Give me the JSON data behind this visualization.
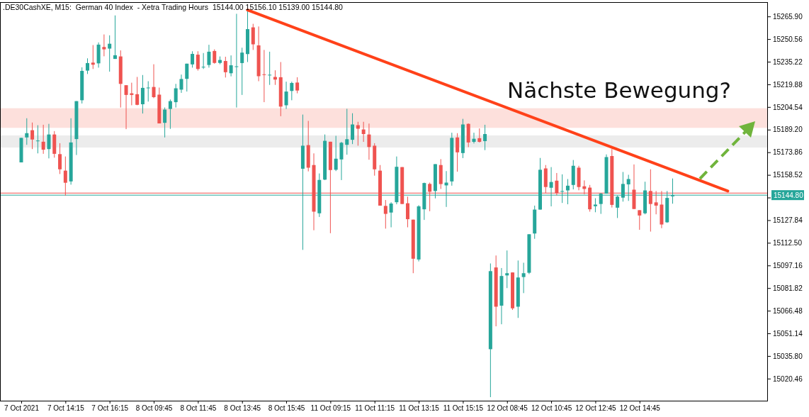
{
  "chart_data": {
    "type": "candlestick",
    "title": ".DE30CashXE, M15:  German 40 Index  - Xetra Trading Hours  15144.00 15156.10 15139.00 15144.80",
    "annotations": [
      "Nächste Bewegung?"
    ],
    "categories": [
      "7 Oct 2021",
      null,
      null,
      null,
      null,
      null,
      null,
      null,
      "7 Oct 14:15",
      null,
      null,
      null,
      null,
      null,
      null,
      null,
      "7 Oct 16:15",
      null,
      null,
      null,
      null,
      null,
      null,
      null,
      "8 Oct 09:45",
      null,
      null,
      null,
      null,
      null,
      null,
      null,
      "8 Oct 11:45",
      null,
      null,
      null,
      null,
      null,
      null,
      null,
      "8 Oct 13:45",
      null,
      null,
      null,
      null,
      null,
      null,
      null,
      "8 Oct 15:45",
      null,
      null,
      null,
      null,
      null,
      null,
      null,
      "11 Oct 09:15",
      null,
      null,
      null,
      null,
      null,
      null,
      null,
      "11 Oct 11:15",
      null,
      null,
      null,
      null,
      null,
      null,
      null,
      "11 Oct 13:15",
      null,
      null,
      null,
      null,
      null,
      null,
      null,
      "11 Oct 15:15",
      null,
      null,
      null,
      null,
      null,
      null,
      null,
      "12 Oct 08:45",
      null,
      null,
      null,
      null,
      null,
      null,
      null,
      "12 Oct 10:45",
      null,
      null,
      null,
      null,
      null,
      null,
      null,
      "12 Oct 12:45",
      null,
      null,
      null,
      null,
      null,
      null,
      null,
      "12 Oct 14:45",
      null,
      null,
      null,
      null,
      null,
      null,
      null,
      null,
      null,
      null,
      null,
      null,
      null,
      null,
      null,
      null,
      null,
      null,
      null,
      null,
      null,
      null,
      null
    ],
    "ohlc": [
      [
        15167.0,
        15183.6,
        15167.0,
        15183.6
      ],
      [
        15183.9,
        15196.9,
        15178.9,
        15186.8
      ],
      [
        15188.8,
        15194.0,
        15176.0,
        15182.5
      ],
      [
        15181.6,
        15192.2,
        15173.1,
        15181.8
      ],
      [
        15181.0,
        15192.5,
        15172.8,
        15175.6
      ],
      [
        15176.0,
        15193.1,
        15169.7,
        15185.9
      ],
      [
        15185.9,
        15188.2,
        15170.2,
        15172.8
      ],
      [
        15172.6,
        15180.0,
        15159.1,
        15162.3
      ],
      [
        15161.4,
        15171.0,
        15144.5,
        15153.2
      ],
      [
        15154.1,
        15196.9,
        15151.9,
        15180.5
      ],
      [
        15182.8,
        15208.5,
        15172.0,
        15208.5
      ],
      [
        15209.1,
        15231.4,
        15206.9,
        15229.0
      ],
      [
        15229.2,
        15237.5,
        15226.9,
        15234.3
      ],
      [
        15234.6,
        15246.5,
        15230.3,
        15233.2
      ],
      [
        15234.1,
        15248.3,
        15231.2,
        15246.8
      ],
      [
        15245.2,
        15253.7,
        15238.9,
        15243.6
      ],
      [
        15244.1,
        15253.1,
        15228.5,
        15247.4
      ],
      [
        15237.1,
        15266.6,
        15237.1,
        15239.6
      ],
      [
        15238.8,
        15242.9,
        15204.2,
        15220.2
      ],
      [
        15219.3,
        15219.3,
        15189.5,
        15212.7
      ],
      [
        15213.8,
        15221.0,
        15205.7,
        15212.7
      ],
      [
        15213.2,
        15224.9,
        15205.7,
        15206.0
      ],
      [
        15206.4,
        15226.2,
        15200.1,
        15217.5
      ],
      [
        15217.5,
        15222.0,
        15208.2,
        15217.7
      ],
      [
        15218.1,
        15233.5,
        15210.5,
        15211.2
      ],
      [
        15212.9,
        15217.7,
        15193.4,
        15193.4
      ],
      [
        15193.8,
        15204.2,
        15183.9,
        15202.8
      ],
      [
        15203.2,
        15209.6,
        15189.7,
        15208.5
      ],
      [
        15207.8,
        15220.2,
        15204.2,
        15217.2
      ],
      [
        15216.3,
        15226.5,
        15214.1,
        15223.5
      ],
      [
        15223.6,
        15233.9,
        15215.0,
        15233.9
      ],
      [
        15233.4,
        15242.3,
        15231.2,
        15240.5
      ],
      [
        15240.0,
        15242.3,
        15229.2,
        15230.3
      ],
      [
        15231.6,
        15241.1,
        15230.3,
        15231.8
      ],
      [
        15233.0,
        15246.7,
        15231.2,
        15242.0
      ],
      [
        15242.5,
        15243.6,
        15233.9,
        15234.4
      ],
      [
        15234.4,
        15238.8,
        15233.5,
        15236.4
      ],
      [
        15235.7,
        15238.6,
        15224.5,
        15228.1
      ],
      [
        15227.4,
        15239.5,
        15225.3,
        15232.8
      ],
      [
        15231.9,
        15267.7,
        15204.2,
        15232.1
      ],
      [
        15234.3,
        15244.7,
        15212.7,
        15241.4
      ],
      [
        15240.4,
        15270.2,
        15235.0,
        15257.3
      ],
      [
        15258.5,
        15260.9,
        15243.2,
        15247.0
      ],
      [
        15246.3,
        15259.1,
        15222.0,
        15225.4
      ],
      [
        15226.7,
        15243.2,
        15207.8,
        15226.5
      ],
      [
        15226.2,
        15242.0,
        15219.5,
        15226.4
      ],
      [
        15224.9,
        15229.4,
        15219.5,
        15223.1
      ],
      [
        15224.7,
        15235.0,
        15198.3,
        15204.8
      ],
      [
        15205.7,
        15221.7,
        15203.2,
        15215.0
      ],
      [
        15215.4,
        15221.7,
        15209.1,
        15220.8
      ],
      [
        15221.1,
        15224.7,
        15213.8,
        15215.7
      ],
      [
        15162.7,
        15199.4,
        15107.7,
        15178.3
      ],
      [
        15178.7,
        15195.1,
        15160.9,
        15163.4
      ],
      [
        15165.2,
        15173.1,
        15121.0,
        15133.6
      ],
      [
        15132.5,
        15159.5,
        15130.0,
        15155.1
      ],
      [
        15155.3,
        15185.9,
        15155.0,
        15181.6
      ],
      [
        15181.0,
        15181.0,
        15119.0,
        15161.8
      ],
      [
        15162.0,
        15185.0,
        15161.1,
        15169.5
      ],
      [
        15169.0,
        15180.9,
        15155.0,
        15180.3
      ],
      [
        15178.9,
        15203.3,
        15172.2,
        15182.7
      ],
      [
        15182.3,
        15200.3,
        15179.4,
        15192.7
      ],
      [
        15192.2,
        15194.5,
        15178.3,
        15189.8
      ],
      [
        15189.3,
        15194.5,
        15180.9,
        15186.2
      ],
      [
        15185.9,
        15193.3,
        15168.8,
        15177.4
      ],
      [
        15178.3,
        15180.0,
        15158.0,
        15162.3
      ],
      [
        15161.4,
        15165.2,
        15137.7,
        15137.7
      ],
      [
        15137.5,
        15141.5,
        15122.1,
        15132.1
      ],
      [
        15133.0,
        15140.0,
        15123.0,
        15139.1
      ],
      [
        15140.0,
        15171.0,
        15138.6,
        15164.0
      ],
      [
        15163.8,
        15163.8,
        15138.8,
        15138.8
      ],
      [
        15139.3,
        15143.8,
        15123.0,
        15128.5
      ],
      [
        15128.2,
        15128.2,
        15091.9,
        15101.7
      ],
      [
        15101.2,
        15138.0,
        15099.9,
        15137.2
      ],
      [
        15135.2,
        15153.3,
        15128.0,
        15153.0
      ],
      [
        15152.4,
        15153.3,
        15133.9,
        15147.1
      ],
      [
        15147.6,
        15165.8,
        15142.6,
        15165.8
      ],
      [
        15165.2,
        15169.2,
        15149.0,
        15152.3
      ],
      [
        15151.4,
        15161.1,
        15136.8,
        15153.3
      ],
      [
        15154.1,
        15187.1,
        15151.2,
        15183.6
      ],
      [
        15183.9,
        15186.8,
        15160.7,
        15173.8
      ],
      [
        15173.3,
        15196.5,
        15169.9,
        15192.7
      ],
      [
        15193.1,
        15193.4,
        15177.3,
        15180.5
      ],
      [
        15180.9,
        15187.1,
        15179.8,
        15183.0
      ],
      [
        15183.4,
        15190.0,
        15180.5,
        15180.9
      ],
      [
        15181.4,
        15192.5,
        15175.3,
        15186.2
      ],
      [
        15040.4,
        15098.5,
        15007.9,
        15093.3
      ],
      [
        15095.8,
        15103.9,
        15055.9,
        15069.2
      ],
      [
        15069.9,
        15095.4,
        15057.3,
        15090.0
      ],
      [
        15090.4,
        15107.3,
        15081.8,
        15091.9
      ],
      [
        15092.4,
        15092.4,
        15067.0,
        15068.1
      ],
      [
        15069.2,
        15100.5,
        15061.6,
        15089.0
      ],
      [
        15089.3,
        15099.0,
        15078.4,
        15091.9
      ],
      [
        15092.2,
        15118.3,
        15091.3,
        15118.3
      ],
      [
        15118.8,
        15137.7,
        15115.2,
        15135.0
      ],
      [
        15135.0,
        15170.0,
        15135.0,
        15162.0
      ],
      [
        15162.9,
        15165.2,
        15146.2,
        15150.3
      ],
      [
        15149.8,
        15163.8,
        15137.2,
        15153.7
      ],
      [
        15154.6,
        15159.8,
        15144.7,
        15146.2
      ],
      [
        15147.4,
        15158.9,
        15139.5,
        15147.6
      ],
      [
        15148.0,
        15155.7,
        15138.6,
        15151.2
      ],
      [
        15151.7,
        15168.6,
        15148.7,
        15164.7
      ],
      [
        15163.4,
        15164.7,
        15148.1,
        15150.3
      ],
      [
        15150.8,
        15154.8,
        15145.4,
        15149.0
      ],
      [
        15149.9,
        15151.7,
        15133.6,
        15135.2
      ],
      [
        15137.3,
        15142.7,
        15133.2,
        15138.4
      ],
      [
        15138.8,
        15146.3,
        15132.1,
        15145.8
      ],
      [
        15145.8,
        15172.4,
        15145.8,
        15170.6
      ],
      [
        15171.3,
        15176.0,
        15136.4,
        15138.2
      ],
      [
        15136.3,
        15144.5,
        15129.3,
        15143.8
      ],
      [
        15143.1,
        15160.5,
        15140.4,
        15152.4
      ],
      [
        15152.1,
        15158.6,
        15140.9,
        15155.7
      ],
      [
        15148.5,
        15165.6,
        15135.4,
        15135.4
      ],
      [
        15134.6,
        15134.6,
        15121.3,
        15131.0
      ],
      [
        15132.5,
        15153.9,
        15131.8,
        15148.0
      ],
      [
        15147.6,
        15162.3,
        15120.1,
        15138.8
      ],
      [
        15139.9,
        15147.6,
        15131.8,
        15137.7
      ],
      [
        15138.4,
        15147.6,
        15122.4,
        15124.9
      ],
      [
        15126.4,
        15147.6,
        15126.0,
        15142.9
      ],
      [
        15144.0,
        15156.1,
        15139.0,
        15144.8
      ],
      null,
      null,
      null,
      null,
      null,
      null,
      null,
      null,
      null,
      null,
      null,
      null,
      null,
      null,
      null,
      null,
      null
    ],
    "series": [
      {
        "type": "line",
        "color": "#ff4119",
        "values": [
          null,
          null,
          null,
          null,
          null,
          null,
          null,
          null,
          null,
          null,
          null,
          null,
          null,
          null,
          null,
          null,
          null,
          null,
          null,
          null,
          null,
          null,
          null,
          null,
          null,
          null,
          null,
          null,
          null,
          null,
          null,
          null,
          null,
          null,
          null,
          null,
          null,
          null,
          null,
          null,
          null,
          15270.2,
          null,
          null,
          null,
          null,
          null,
          null,
          null,
          null,
          null,
          null,
          null,
          null,
          null,
          null,
          null,
          null,
          null,
          null,
          null,
          null,
          null,
          null,
          null,
          null,
          null,
          null,
          null,
          null,
          null,
          null,
          null,
          null,
          null,
          null,
          null,
          null,
          null,
          null,
          null,
          null,
          null,
          null,
          null,
          null,
          null,
          null,
          null,
          null,
          null,
          null,
          null,
          null,
          null,
          null,
          null,
          null,
          null,
          null,
          null,
          null,
          null,
          null,
          null,
          null,
          null,
          null,
          null,
          null,
          null,
          null,
          null,
          null,
          null,
          null,
          null,
          null,
          null,
          null,
          null,
          null,
          null,
          null,
          null,
          null,
          null,
          null,
          15147.6,
          null,
          null,
          null,
          null,
          null,
          null,
          null
        ]
      }
    ],
    "ylim": [
      15005.5,
      15275.6
    ],
    "yticks": [
      15020.46,
      {
        "value": 15035.8,
        "label": "15035.80"
      },
      15051.14,
      15066.48,
      15081.82,
      15097.16,
      {
        "value": 15112.5,
        "label": "15112.50"
      },
      15127.84,
      {
        "value": 15143.18,
        "label": null
      },
      15158.52,
      15173.86,
      {
        "value": 15189.2,
        "label": "15189.20"
      },
      15204.54,
      15219.88,
      15235.22,
      15250.56,
      {
        "value": 15265.9,
        "label": "15265.90"
      }
    ],
    "bands": [
      {
        "axis": "y",
        "from": 15190.4,
        "to": 15203.7,
        "color": "#fde0dc"
      },
      {
        "axis": "y",
        "from": 15177.1,
        "to": 15185.3,
        "color": "#ececec"
      }
    ],
    "ref_lines": [
      {
        "axis": "y",
        "value": 15146.2,
        "color": "#ef5350"
      },
      {
        "axis": "y",
        "value": 15144.8,
        "label": "15144.80",
        "color": "#26a69a"
      }
    ]
  }
}
